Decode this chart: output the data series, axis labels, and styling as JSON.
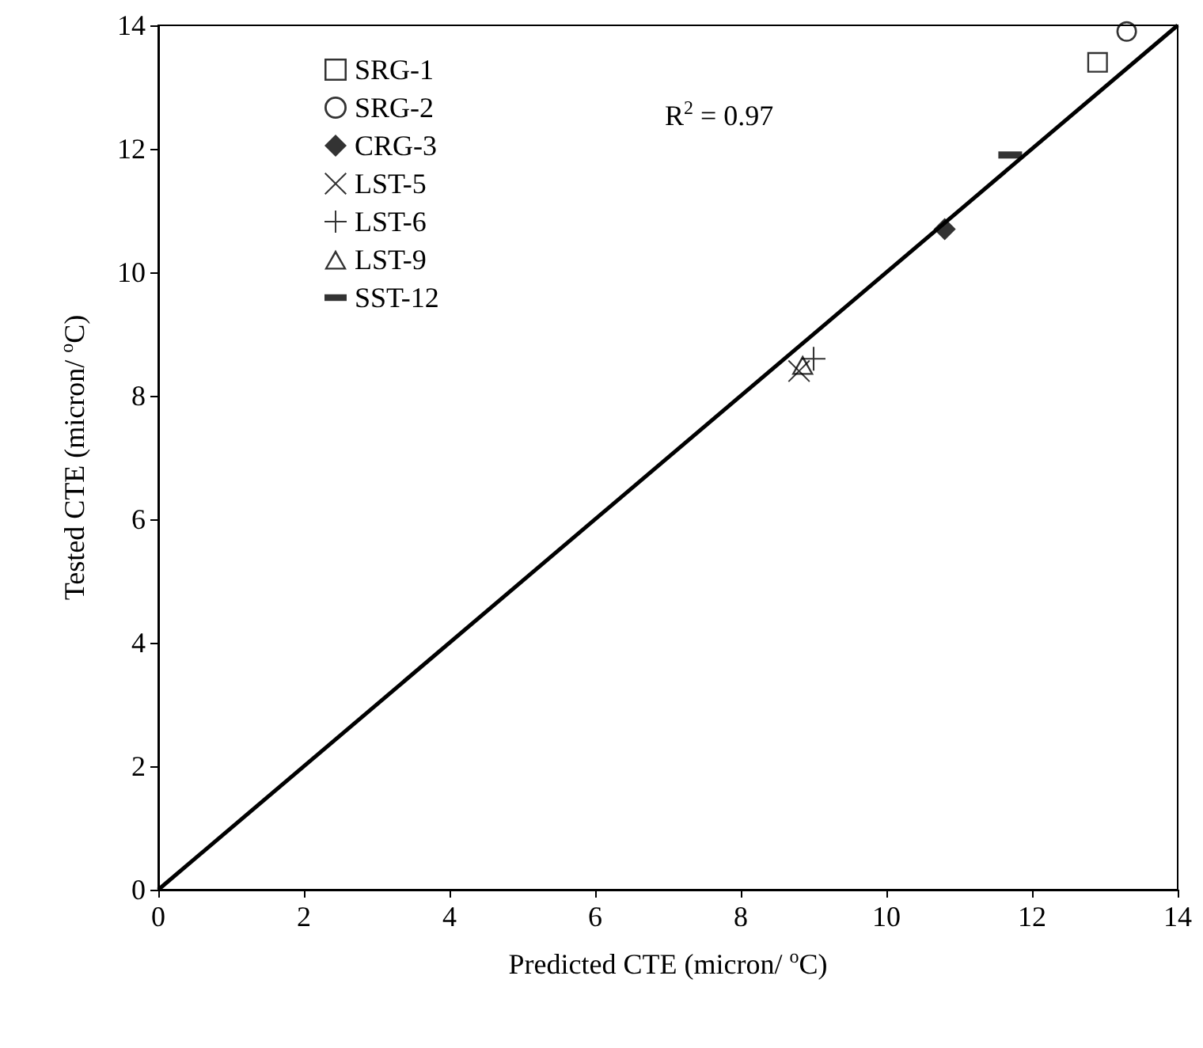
{
  "chart_data": {
    "type": "scatter",
    "xlabel": "Predicted CTE (micron/ $^{o}$C)",
    "ylabel": "Tested CTE (micron/ $^{o}$C)",
    "xlim": [
      0,
      14
    ],
    "ylim": [
      0,
      14
    ],
    "xticks": [
      0,
      2,
      4,
      6,
      8,
      10,
      12,
      14
    ],
    "yticks": [
      0,
      2,
      4,
      6,
      8,
      10,
      12,
      14
    ],
    "grid": false,
    "legend": "top left",
    "annotations": [
      "R$^{2}$ = 0.97"
    ],
    "series": [
      {
        "name": "SRG-1",
        "color": "#000000",
        "marker": "square",
        "x": [
          12.9
        ],
        "values": [
          13.4
        ]
      },
      {
        "name": "SRG-2",
        "color": "#000000",
        "marker": "circle",
        "x": [
          13.3
        ],
        "values": [
          13.9
        ]
      },
      {
        "name": "CRG-3",
        "color": "#000000",
        "marker": "diamond",
        "x": [
          10.8
        ],
        "values": [
          10.7
        ]
      },
      {
        "name": "LST-5",
        "color": "#000000",
        "marker": "cross",
        "x": [
          8.8
        ],
        "values": [
          8.4
        ]
      },
      {
        "name": "LST-6",
        "color": "#000000",
        "marker": "plus",
        "x": [
          9.0
        ],
        "values": [
          8.6
        ]
      },
      {
        "name": "LST-9",
        "color": "#000000",
        "marker": "triangle",
        "x": [
          8.85
        ],
        "values": [
          8.5
        ]
      },
      {
        "name": "SST-12",
        "color": "#000000",
        "x": [
          11.7
        ],
        "values": [
          11.9
        ]
      },
      {
        "type": "line",
        "color": "#000000",
        "marker": "none",
        "line_style": "solid",
        "x": [
          0,
          14
        ],
        "values": [
          0,
          14
        ]
      }
    ]
  }
}
